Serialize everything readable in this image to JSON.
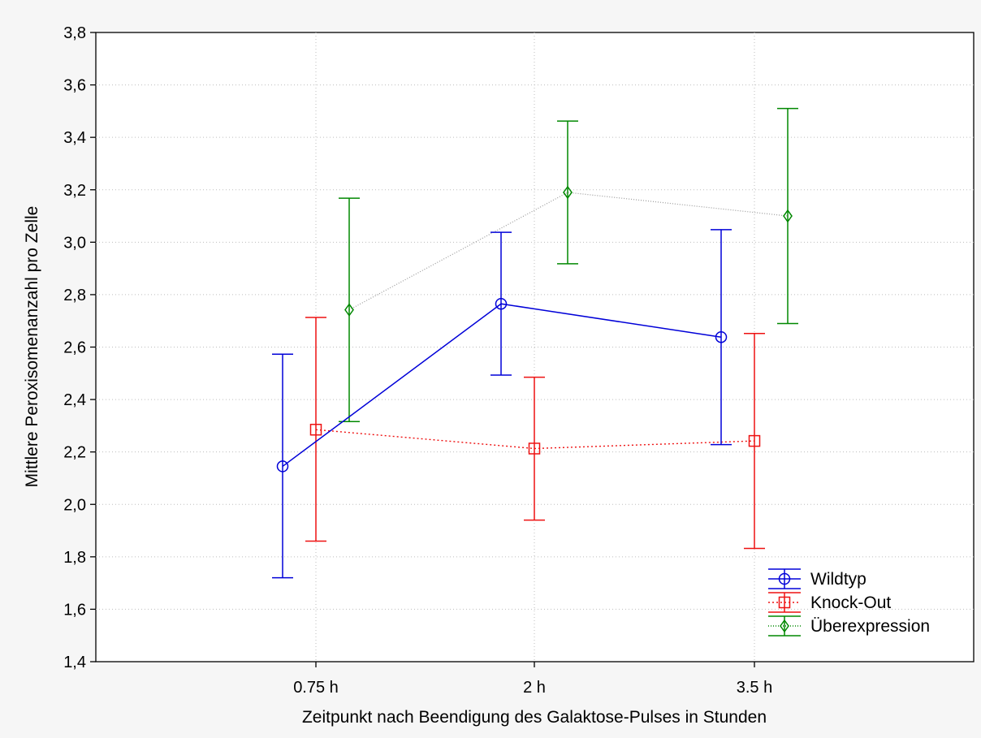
{
  "chart_data": {
    "type": "line",
    "title": "",
    "xlabel": "Zeitpunkt nach Beendigung des Galaktose-Pulses in Stunden",
    "ylabel": "Mittlere Peroxisomenanzahl pro Zelle",
    "categories": [
      "0.75 h",
      "2 h",
      "3.5 h"
    ],
    "ylim": [
      1.4,
      3.8
    ],
    "yticks": [
      "1,4",
      "1,6",
      "1,8",
      "2,0",
      "2,2",
      "2,4",
      "2,6",
      "2,8",
      "3,0",
      "3,2",
      "3,4",
      "3,6",
      "3,8"
    ],
    "grid": true,
    "legend_position": "bottom-right",
    "series": [
      {
        "name": "Wildtyp",
        "color": "#0000d8",
        "marker": "circle",
        "line_style": "solid",
        "values": [
          2.145,
          2.765,
          2.638
        ],
        "err_low": [
          1.72,
          2.493,
          2.228
        ],
        "err_high": [
          2.573,
          3.038,
          3.048
        ]
      },
      {
        "name": "Knock-Out",
        "color": "#ee1111",
        "marker": "square",
        "line_style": "dotted",
        "values": [
          2.285,
          2.213,
          2.242
        ],
        "err_low": [
          1.86,
          1.94,
          1.832
        ],
        "err_high": [
          2.713,
          2.485,
          2.652
        ]
      },
      {
        "name": "Überexpression",
        "color": "#008800",
        "marker": "diamond",
        "line_style": "dotted-light",
        "values": [
          2.742,
          3.19,
          3.1
        ],
        "err_low": [
          2.316,
          2.918,
          2.69
        ],
        "err_high": [
          3.168,
          3.462,
          3.51
        ]
      }
    ]
  }
}
